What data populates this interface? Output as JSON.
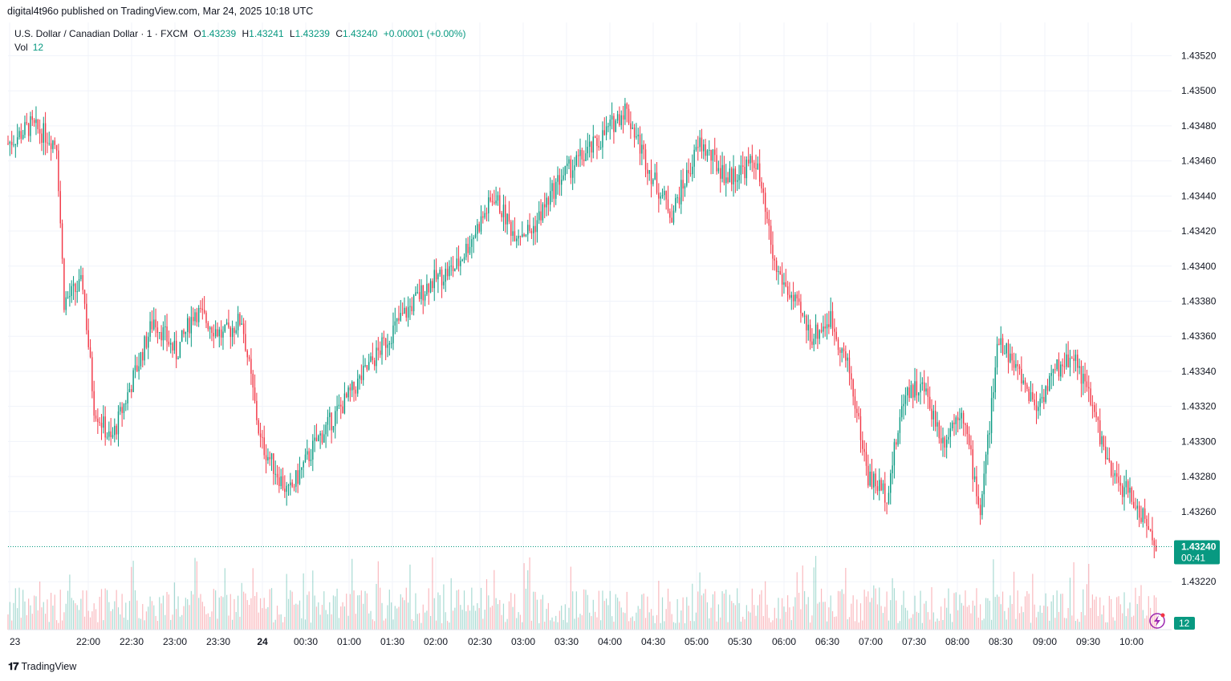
{
  "published": "digital4t96o published on TradingView.com, Mar 24, 2025 10:18 UTC",
  "legend": {
    "symbol": "U.S. Dollar / Canadian Dollar · 1 · FXCM",
    "open_label": "O",
    "open": "1.43239",
    "high_label": "H",
    "high": "1.43241",
    "low_label": "L",
    "low": "1.43239",
    "close_label": "C",
    "close": "1.43240",
    "change": "+0.00001 (+0.00%)",
    "vol_label": "Vol",
    "vol": "12"
  },
  "price_tag": {
    "price": "1.43240",
    "countdown": "00:41",
    "vol": "12"
  },
  "footer": {
    "brand": "TradingView"
  },
  "colors": {
    "up": "#089981",
    "down": "#f23645",
    "grid": "#f0f3fa",
    "tag": "#089981"
  },
  "chart_data": {
    "type": "candlestick",
    "symbol": "USDCAD",
    "y_ticks": [
      "1.43520",
      "1.43500",
      "1.43480",
      "1.43460",
      "1.43440",
      "1.43420",
      "1.43400",
      "1.43380",
      "1.43360",
      "1.43340",
      "1.43320",
      "1.43300",
      "1.43280",
      "1.43260",
      "1.43220"
    ],
    "x_ticks": [
      "23",
      "22:00",
      "22:30",
      "23:00",
      "23:30",
      "24",
      "00:30",
      "01:00",
      "01:30",
      "02:00",
      "02:30",
      "03:00",
      "03:30",
      "04:00",
      "04:30",
      "05:00",
      "05:30",
      "06:00",
      "06:30",
      "07:00",
      "07:30",
      "08:00",
      "08:30",
      "09:00",
      "09:30",
      "10:00"
    ],
    "ylim": [
      1.43205,
      1.43528
    ],
    "last_price": 1.4324,
    "price_path": [
      {
        "t": 0,
        "p": 1.4347
      },
      {
        "t": 12,
        "p": 1.4348
      },
      {
        "t": 20,
        "p": 1.43475
      },
      {
        "t": 26,
        "p": 1.4347
      },
      {
        "t": 30,
        "p": 1.4338
      },
      {
        "t": 40,
        "p": 1.4339
      },
      {
        "t": 46,
        "p": 1.4332
      },
      {
        "t": 55,
        "p": 1.433
      },
      {
        "t": 65,
        "p": 1.4333
      },
      {
        "t": 78,
        "p": 1.4337
      },
      {
        "t": 90,
        "p": 1.4335
      },
      {
        "t": 100,
        "p": 1.43375
      },
      {
        "t": 115,
        "p": 1.4336
      },
      {
        "t": 125,
        "p": 1.4337
      },
      {
        "t": 135,
        "p": 1.433
      },
      {
        "t": 150,
        "p": 1.4327
      },
      {
        "t": 165,
        "p": 1.433
      },
      {
        "t": 185,
        "p": 1.4333
      },
      {
        "t": 210,
        "p": 1.4337
      },
      {
        "t": 225,
        "p": 1.4339
      },
      {
        "t": 240,
        "p": 1.434
      },
      {
        "t": 250,
        "p": 1.4342
      },
      {
        "t": 260,
        "p": 1.4344
      },
      {
        "t": 270,
        "p": 1.4342
      },
      {
        "t": 280,
        "p": 1.4342
      },
      {
        "t": 295,
        "p": 1.4345
      },
      {
        "t": 315,
        "p": 1.4347
      },
      {
        "t": 330,
        "p": 1.4349
      },
      {
        "t": 345,
        "p": 1.4345
      },
      {
        "t": 355,
        "p": 1.4343
      },
      {
        "t": 370,
        "p": 1.4347
      },
      {
        "t": 385,
        "p": 1.4345
      },
      {
        "t": 400,
        "p": 1.4346
      },
      {
        "t": 410,
        "p": 1.434
      },
      {
        "t": 420,
        "p": 1.4338
      },
      {
        "t": 430,
        "p": 1.4336
      },
      {
        "t": 440,
        "p": 1.4337
      },
      {
        "t": 450,
        "p": 1.4334
      },
      {
        "t": 460,
        "p": 1.4328
      },
      {
        "t": 470,
        "p": 1.4327
      },
      {
        "t": 480,
        "p": 1.4333
      },
      {
        "t": 490,
        "p": 1.4333
      },
      {
        "t": 500,
        "p": 1.433
      },
      {
        "t": 510,
        "p": 1.4332
      },
      {
        "t": 520,
        "p": 1.4326
      },
      {
        "t": 530,
        "p": 1.4336
      },
      {
        "t": 540,
        "p": 1.4334
      },
      {
        "t": 550,
        "p": 1.4332
      },
      {
        "t": 560,
        "p": 1.4334
      },
      {
        "t": 570,
        "p": 1.4335
      },
      {
        "t": 580,
        "p": 1.4332
      },
      {
        "t": 590,
        "p": 1.4328
      },
      {
        "t": 600,
        "p": 1.4327
      },
      {
        "t": 605,
        "p": 1.4326
      },
      {
        "t": 615,
        "p": 1.4324
      }
    ]
  }
}
